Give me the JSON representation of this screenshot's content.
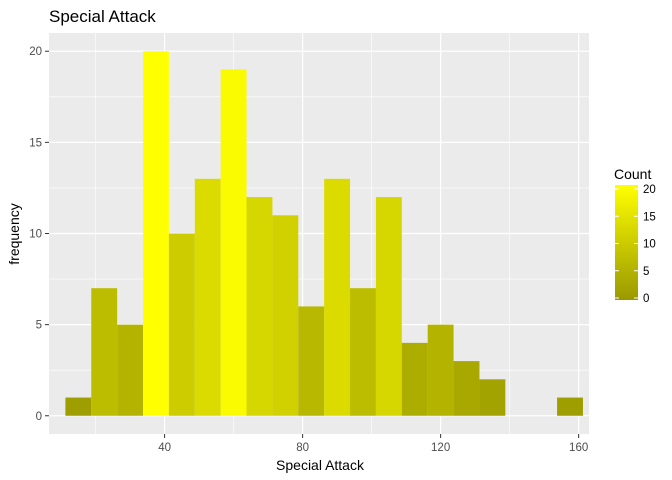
{
  "chart_data": {
    "type": "bar",
    "title": "Special Attack",
    "xlabel": "Special Attack",
    "ylabel": "frequency",
    "binwidth": 7.5,
    "bin_centers": [
      15,
      22.5,
      30,
      37.5,
      45,
      52.5,
      60,
      67.5,
      75,
      82.5,
      90,
      97.5,
      105,
      112.5,
      120,
      127.5,
      135,
      142.5,
      150,
      157.5
    ],
    "values": [
      1,
      7,
      5,
      20,
      10,
      13,
      19,
      12,
      11,
      6,
      13,
      7,
      12,
      4,
      5,
      3,
      2,
      0,
      0,
      1
    ],
    "xlim": [
      6.5,
      163
    ],
    "ylim": [
      -1,
      21
    ],
    "xticks": [
      40,
      80,
      120,
      160
    ],
    "yticks": [
      0,
      5,
      10,
      15,
      20
    ],
    "x_tick_labels": [
      "40",
      "80",
      "120",
      "160"
    ],
    "y_tick_labels": [
      "0",
      "5",
      "10",
      "15",
      "20"
    ],
    "grid": true,
    "panel_background": "#EBEBEB",
    "grid_color": "#FFFFFF",
    "legend": {
      "title": "Count",
      "position": "right",
      "breaks": [
        "0",
        "5",
        "10",
        "15",
        "20"
      ],
      "low_color": "#999900",
      "high_color": "#FFFF00",
      "range": [
        0,
        20
      ]
    }
  }
}
